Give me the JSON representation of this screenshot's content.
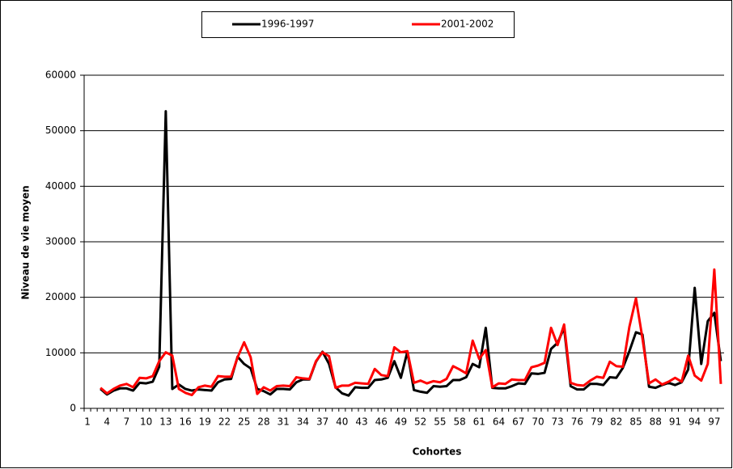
{
  "chart_data": {
    "type": "line",
    "xlabel": "Cohortes",
    "ylabel": "Niveau de vie moyen",
    "categories": [
      "1",
      null,
      null,
      "4",
      null,
      null,
      "7",
      null,
      null,
      "10",
      null,
      null,
      "13",
      null,
      null,
      "16",
      null,
      null,
      "19",
      null,
      null,
      "22",
      null,
      null,
      "25",
      null,
      null,
      "28",
      null,
      null,
      "31",
      null,
      null,
      "34",
      null,
      null,
      "37",
      null,
      null,
      "40",
      null,
      null,
      "43",
      null,
      null,
      "46",
      null,
      null,
      "49",
      null,
      null,
      "52",
      null,
      null,
      "55",
      null,
      null,
      "58",
      null,
      null,
      "61",
      null,
      null,
      "64",
      null,
      null,
      "67",
      null,
      null,
      "70",
      null,
      null,
      "73",
      null,
      null,
      "76",
      null,
      null,
      "79",
      null,
      null,
      "82",
      null,
      null,
      "85",
      null,
      null,
      "88",
      null,
      null,
      "91",
      null,
      null,
      "94",
      null,
      null,
      "97",
      null
    ],
    "series": [
      {
        "name": "1996-1997",
        "color": "#000000",
        "values": [
          null,
          null,
          3500,
          2500,
          3200,
          3600,
          3600,
          3200,
          4600,
          4500,
          4800,
          7500,
          53500,
          3500,
          4300,
          3500,
          3200,
          3400,
          3300,
          3200,
          4700,
          5200,
          5300,
          9300,
          8000,
          7200,
          3500,
          3100,
          2500,
          3500,
          3500,
          3400,
          4700,
          5200,
          5200,
          8400,
          10200,
          8000,
          3800,
          2700,
          2300,
          3800,
          3700,
          3700,
          5100,
          5200,
          5500,
          8500,
          5500,
          10200,
          3300,
          3000,
          2800,
          4000,
          3900,
          4000,
          5100,
          5100,
          5600,
          8000,
          7400,
          14500,
          3700,
          3600,
          3600,
          4000,
          4500,
          4400,
          6300,
          6200,
          6400,
          10700,
          11800,
          14500,
          4000,
          3400,
          3400,
          4400,
          4400,
          4200,
          5600,
          5500,
          7300,
          10300,
          13700,
          13300,
          3900,
          3700,
          4200,
          4600,
          4200,
          4700,
          7000,
          21700,
          8000,
          15700,
          17200,
          8500
        ]
      },
      {
        "name": "2001-2002",
        "color": "#ff0000",
        "values": [
          null,
          null,
          3700,
          2700,
          3500,
          4100,
          4400,
          3800,
          5500,
          5400,
          5800,
          8500,
          10100,
          9500,
          3500,
          2800,
          2400,
          3800,
          4100,
          3900,
          5800,
          5700,
          5700,
          9200,
          11900,
          9200,
          2600,
          3800,
          3200,
          4000,
          4100,
          4000,
          5600,
          5400,
          5300,
          8500,
          10100,
          9400,
          3700,
          4100,
          4100,
          4600,
          4500,
          4400,
          7100,
          6000,
          5800,
          11000,
          10100,
          10300,
          4600,
          5000,
          4500,
          4900,
          4700,
          5300,
          7600,
          7000,
          6300,
          12200,
          8900,
          10500,
          3800,
          4500,
          4400,
          5200,
          5100,
          5100,
          7400,
          7700,
          8200,
          14500,
          11400,
          15100,
          4600,
          4200,
          4100,
          5000,
          5700,
          5500,
          8400,
          7600,
          7500,
          14700,
          19800,
          12600,
          4500,
          5200,
          4300,
          4800,
          5500,
          4800,
          9500,
          5900,
          5000,
          8000,
          25000,
          4400
        ]
      }
    ],
    "ylim": [
      0,
      60000
    ],
    "yticks": [
      0,
      10000,
      20000,
      30000,
      40000,
      50000,
      60000
    ],
    "grid": true,
    "legend": "top"
  }
}
